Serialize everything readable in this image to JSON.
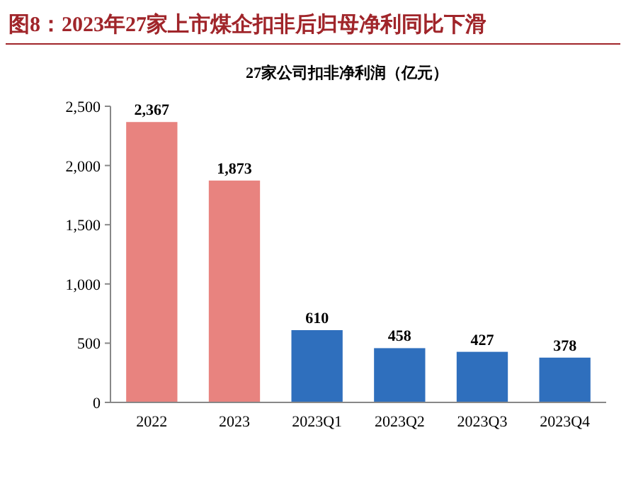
{
  "chart_data": {
    "type": "bar",
    "title": "图8：2023年27家上市煤企扣非后归母净利同比下滑",
    "subtitle": "27家公司扣非净利润（亿元）",
    "categories": [
      "2022",
      "2023",
      "2023Q1",
      "2023Q2",
      "2023Q3",
      "2023Q4"
    ],
    "values": [
      2367,
      1873,
      610,
      458,
      427,
      378
    ],
    "colors": [
      "#e8837f",
      "#e8837f",
      "#2f6fbd",
      "#2f6fbd",
      "#2f6fbd",
      "#2f6fbd"
    ],
    "value_labels": [
      "2,367",
      "1,873",
      "610",
      "458",
      "427",
      "378"
    ],
    "ylim": [
      0,
      2500
    ],
    "yticks": [
      {
        "value": 0,
        "label": "0"
      },
      {
        "value": 500,
        "label": "500"
      },
      {
        "value": 1000,
        "label": "1,000"
      },
      {
        "value": 1500,
        "label": "1,500"
      },
      {
        "value": 2000,
        "label": "2,000"
      },
      {
        "value": 2500,
        "label": "2,500"
      }
    ],
    "grid": false
  }
}
